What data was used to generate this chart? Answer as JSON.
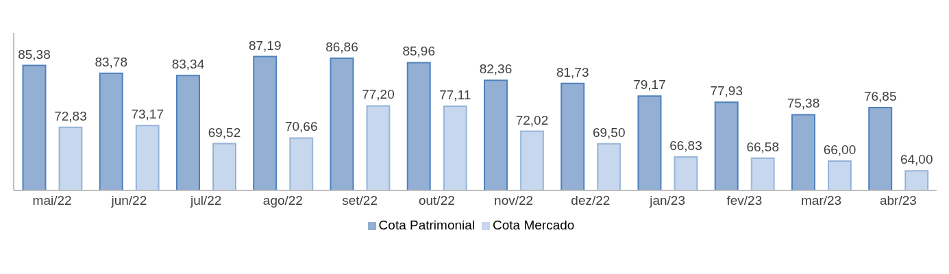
{
  "chart_data": {
    "type": "bar",
    "categories": [
      "mai/22",
      "jun/22",
      "jul/22",
      "ago/22",
      "set/22",
      "out/22",
      "nov/22",
      "dez/22",
      "jan/23",
      "fev/23",
      "mar/23",
      "abr/23"
    ],
    "series": [
      {
        "name": "Cota Patrimonial",
        "color": "#93afd4",
        "values": [
          85.38,
          83.78,
          83.34,
          87.19,
          86.86,
          85.96,
          82.36,
          81.73,
          79.17,
          77.93,
          75.38,
          76.85
        ],
        "value_labels": [
          "85,38",
          "83,78",
          "83,34",
          "87,19",
          "86,86",
          "85,96",
          "82,36",
          "81,73",
          "79,17",
          "77,93",
          "75,38",
          "76,85"
        ]
      },
      {
        "name": "Cota Mercado",
        "color": "#c6d7ee",
        "values": [
          72.83,
          73.17,
          69.52,
          70.66,
          77.2,
          77.11,
          72.02,
          69.5,
          66.83,
          66.58,
          66.0,
          64.0
        ],
        "value_labels": [
          "72,83",
          "73,17",
          "69,52",
          "70,66",
          "77,20",
          "77,11",
          "72,02",
          "69,50",
          "66,83",
          "66,58",
          "66,00",
          "64,00"
        ]
      }
    ],
    "ylim": [
      60,
      92
    ],
    "tick_labels": "x",
    "legend": "bottom",
    "grid": false
  }
}
